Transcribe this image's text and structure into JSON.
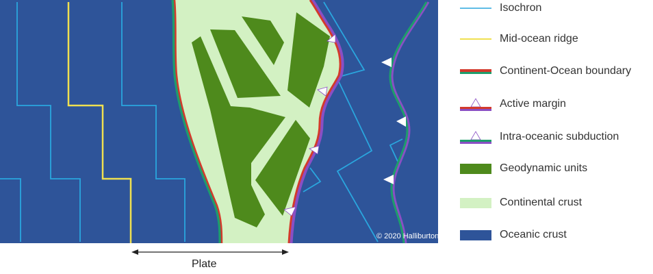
{
  "legend": {
    "items": [
      {
        "label": "Isochron",
        "symbol": "isochron"
      },
      {
        "label": "Mid-ocean ridge",
        "symbol": "ridge"
      },
      {
        "label": "Continent-Ocean boundary",
        "symbol": "cob"
      },
      {
        "label": "Active margin",
        "symbol": "active"
      },
      {
        "label": "Intra-oceanic subduction",
        "symbol": "intra"
      },
      {
        "label": "Geodynamic units",
        "symbol": "units"
      },
      {
        "label": "Continental crust",
        "symbol": "continental"
      },
      {
        "label": "Oceanic crust",
        "symbol": "oceanic"
      }
    ]
  },
  "map": {
    "plate_label": "Plate",
    "copyright": "© 2020 Halliburton"
  },
  "colors": {
    "oceanic": "#2e5499",
    "isochron": "#2aa6de",
    "ridge": "#f0e050",
    "continental": "#d3f1c3",
    "units": "#4e8a1c",
    "cob_red": "#d33a2c",
    "cob_green": "#1e9d6c",
    "subduction_purple": "#8a4fc4"
  }
}
